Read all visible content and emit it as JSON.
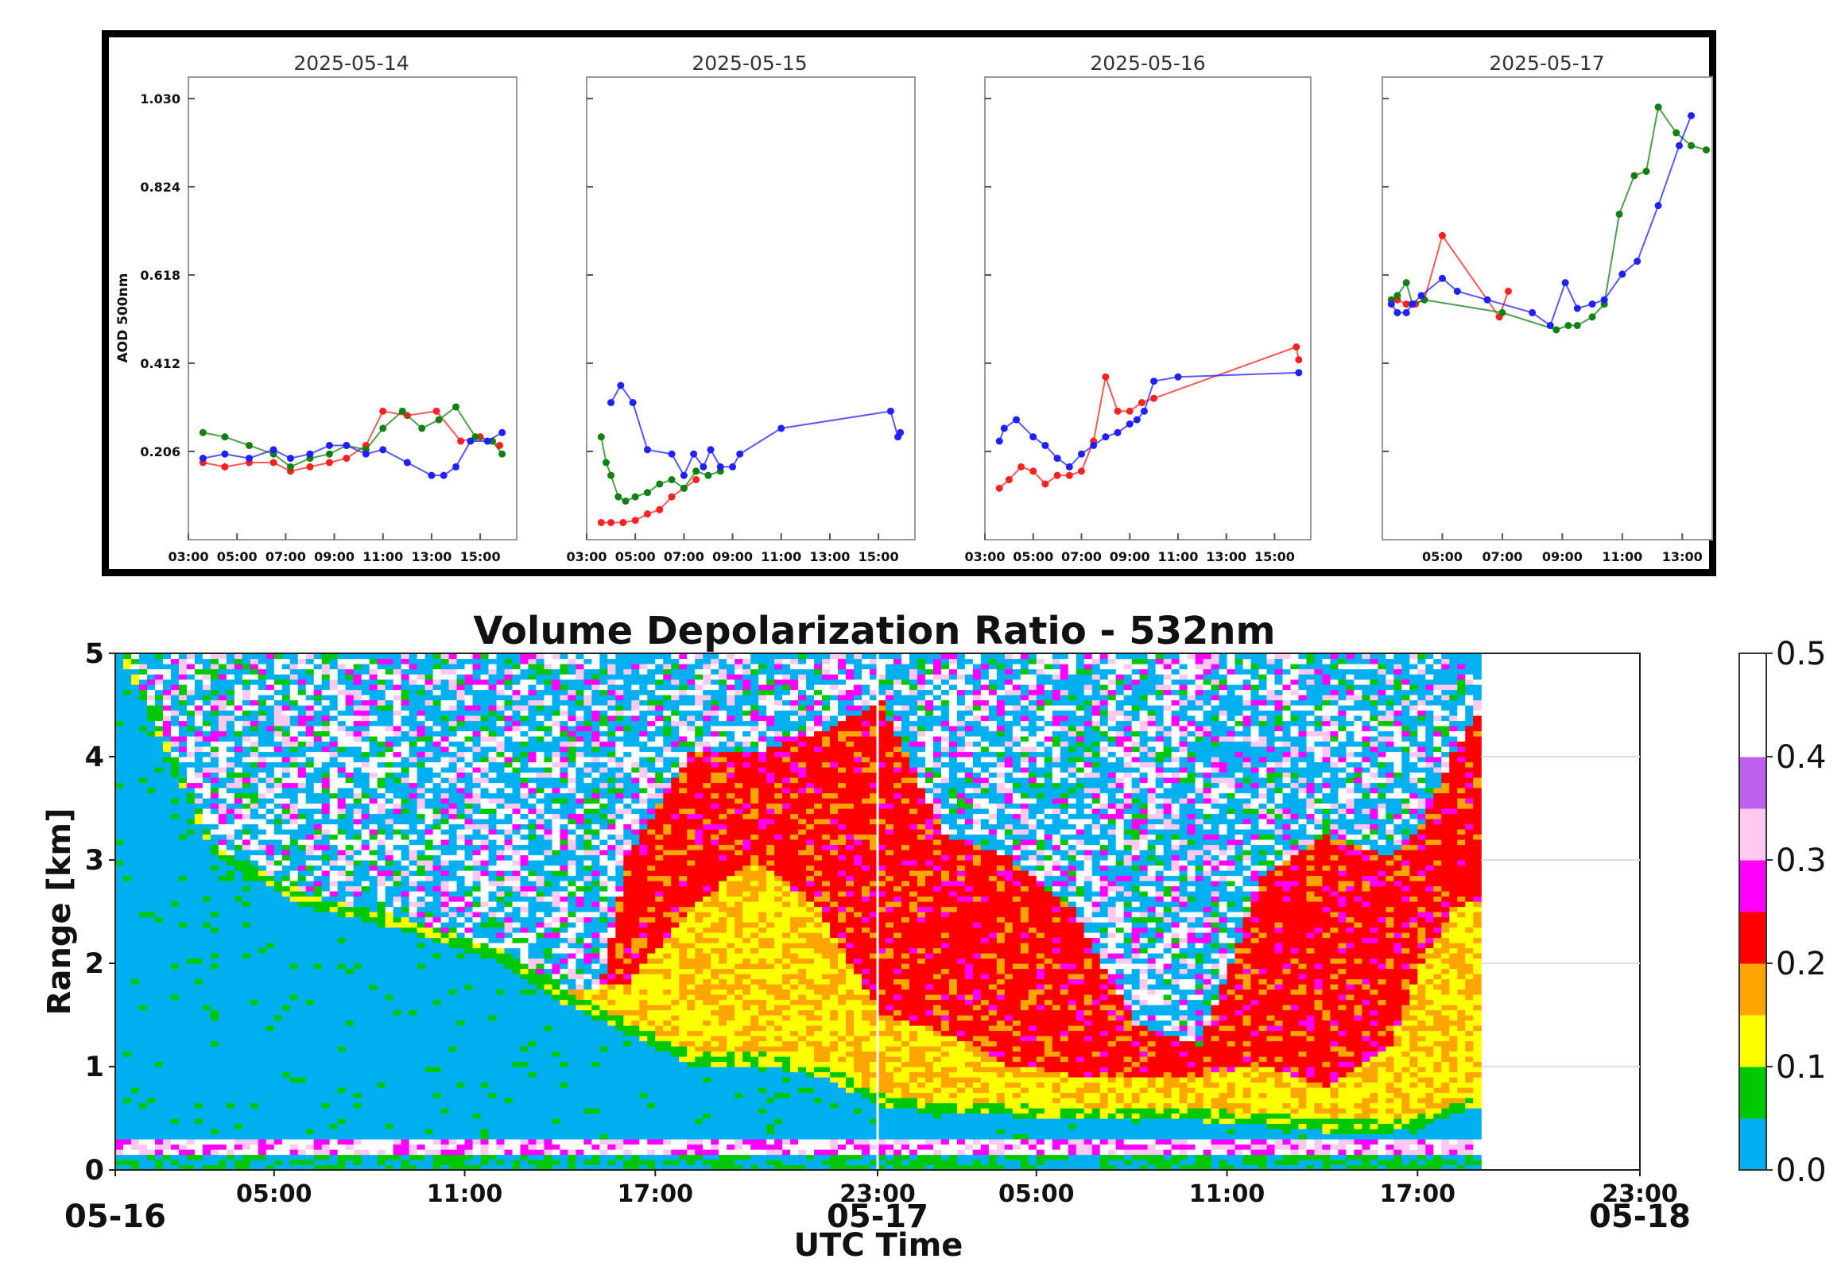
{
  "chart_data": [
    {
      "type": "line",
      "title": "2025-05-14",
      "ylabel": "AOD 500nm",
      "ylim": [
        0.0,
        1.08
      ],
      "xlim": [
        3.0,
        16.5
      ],
      "yticks": [
        "0.206",
        "0.412",
        "0.618",
        "0.824",
        "1.030"
      ],
      "xticks": [
        "03:00",
        "05:00",
        "07:00",
        "09:00",
        "11:00",
        "13:00",
        "15:00"
      ],
      "series": [
        {
          "name": "red",
          "color": "#ff2020",
          "x": [
            3.6,
            4.5,
            5.5,
            6.5,
            7.2,
            8.0,
            8.8,
            9.5,
            10.3,
            11.0,
            12.0,
            13.2,
            14.2,
            15.0,
            15.8
          ],
          "y": [
            0.18,
            0.17,
            0.18,
            0.18,
            0.16,
            0.17,
            0.18,
            0.19,
            0.22,
            0.3,
            0.29,
            0.3,
            0.23,
            0.24,
            0.22
          ]
        },
        {
          "name": "green",
          "color": "#108010",
          "x": [
            3.6,
            4.5,
            5.5,
            6.5,
            7.2,
            8.0,
            8.8,
            9.5,
            10.3,
            11.0,
            11.8,
            12.6,
            13.3,
            14.0,
            14.8,
            15.5,
            15.9
          ],
          "y": [
            0.25,
            0.24,
            0.22,
            0.2,
            0.17,
            0.19,
            0.2,
            0.22,
            0.21,
            0.26,
            0.3,
            0.26,
            0.28,
            0.31,
            0.24,
            0.23,
            0.2
          ]
        },
        {
          "name": "blue",
          "color": "#2020ff",
          "x": [
            3.6,
            4.5,
            5.5,
            6.5,
            7.2,
            8.0,
            8.8,
            9.5,
            10.3,
            11.0,
            12.0,
            13.0,
            13.5,
            14.0,
            14.6,
            15.3,
            15.9
          ],
          "y": [
            0.19,
            0.2,
            0.19,
            0.21,
            0.19,
            0.2,
            0.22,
            0.22,
            0.2,
            0.21,
            0.18,
            0.15,
            0.15,
            0.17,
            0.23,
            0.23,
            0.25
          ]
        }
      ]
    },
    {
      "type": "line",
      "title": "2025-05-15",
      "ylim": [
        0.0,
        1.08
      ],
      "xlim": [
        3.0,
        16.5
      ],
      "xticks": [
        "03:00",
        "05:00",
        "07:00",
        "09:00",
        "11:00",
        "13:00",
        "15:00"
      ],
      "series": [
        {
          "name": "red",
          "color": "#ff2020",
          "x": [
            3.6,
            4.0,
            4.5,
            5.0,
            5.5,
            6.0,
            6.5,
            7.0,
            7.5
          ],
          "y": [
            0.04,
            0.04,
            0.04,
            0.045,
            0.06,
            0.07,
            0.1,
            0.12,
            0.14
          ]
        },
        {
          "name": "green",
          "color": "#108010",
          "x": [
            3.6,
            3.8,
            4.0,
            4.3,
            4.6,
            5.0,
            5.5,
            6.0,
            6.5,
            7.0,
            7.5,
            8.0,
            8.5
          ],
          "y": [
            0.24,
            0.18,
            0.15,
            0.1,
            0.09,
            0.1,
            0.11,
            0.13,
            0.14,
            0.12,
            0.16,
            0.15,
            0.16
          ]
        },
        {
          "name": "blue",
          "color": "#2020ff",
          "x": [
            4.0,
            4.4,
            4.9,
            5.5,
            6.5,
            7.0,
            7.4,
            7.8,
            8.1,
            8.5,
            9.0,
            9.3,
            11.0,
            15.5,
            15.8,
            15.9
          ],
          "y": [
            0.32,
            0.36,
            0.32,
            0.21,
            0.2,
            0.15,
            0.2,
            0.17,
            0.21,
            0.17,
            0.17,
            0.2,
            0.26,
            0.3,
            0.24,
            0.25
          ]
        }
      ]
    },
    {
      "type": "line",
      "title": "2025-05-16",
      "ylim": [
        0.0,
        1.08
      ],
      "xlim": [
        3.0,
        16.5
      ],
      "xticks": [
        "03:00",
        "05:00",
        "07:00",
        "09:00",
        "11:00",
        "13:00",
        "15:00"
      ],
      "series": [
        {
          "name": "red",
          "color": "#ff2020",
          "x": [
            3.6,
            4.0,
            4.5,
            5.0,
            5.5,
            6.0,
            6.5,
            7.0,
            7.5,
            8.0,
            8.5,
            9.0,
            9.5,
            10.0,
            15.9,
            16.0
          ],
          "y": [
            0.12,
            0.14,
            0.17,
            0.16,
            0.13,
            0.15,
            0.15,
            0.16,
            0.23,
            0.38,
            0.3,
            0.3,
            0.32,
            0.33,
            0.45,
            0.42
          ]
        },
        {
          "name": "blue",
          "color": "#2020ff",
          "x": [
            3.6,
            3.8,
            4.3,
            5.0,
            5.5,
            6.0,
            6.5,
            7.0,
            7.5,
            8.0,
            8.5,
            9.0,
            9.3,
            9.6,
            10.0,
            11.0,
            16.0
          ],
          "y": [
            0.23,
            0.26,
            0.28,
            0.24,
            0.22,
            0.19,
            0.17,
            0.2,
            0.22,
            0.24,
            0.25,
            0.27,
            0.28,
            0.3,
            0.37,
            0.38,
            0.39
          ]
        }
      ]
    },
    {
      "type": "line",
      "title": "2025-05-17",
      "ylim": [
        0.0,
        1.08
      ],
      "xlim": [
        3.0,
        14.0
      ],
      "xticks": [
        "05:00",
        "07:00",
        "09:00",
        "11:00",
        "13:00"
      ],
      "series": [
        {
          "name": "red",
          "color": "#ff2020",
          "x": [
            3.3,
            3.5,
            3.8,
            4.1,
            4.4,
            5.0,
            6.9,
            7.2
          ],
          "y": [
            0.56,
            0.56,
            0.55,
            0.55,
            0.56,
            0.71,
            0.52,
            0.58
          ]
        },
        {
          "name": "green",
          "color": "#108010",
          "x": [
            3.3,
            3.5,
            3.8,
            4.0,
            4.4,
            7.0,
            8.8,
            9.2,
            9.5,
            10.0,
            10.4,
            10.9,
            11.4,
            11.8,
            12.2,
            12.8,
            13.3,
            13.8
          ],
          "y": [
            0.56,
            0.57,
            0.6,
            0.55,
            0.56,
            0.53,
            0.49,
            0.5,
            0.5,
            0.52,
            0.55,
            0.76,
            0.85,
            0.86,
            1.01,
            0.95,
            0.92,
            0.91
          ]
        },
        {
          "name": "blue",
          "color": "#2020ff",
          "x": [
            3.3,
            3.5,
            3.8,
            4.0,
            4.3,
            5.0,
            5.5,
            6.5,
            8.0,
            8.6,
            9.1,
            9.5,
            10.0,
            10.4,
            11.0,
            11.5,
            12.2,
            12.9,
            13.3
          ],
          "y": [
            0.55,
            0.53,
            0.53,
            0.55,
            0.57,
            0.61,
            0.58,
            0.56,
            0.53,
            0.5,
            0.6,
            0.54,
            0.55,
            0.56,
            0.62,
            0.65,
            0.78,
            0.92,
            0.99
          ]
        }
      ]
    },
    {
      "type": "heatmap",
      "title": "Volume Depolarization Ratio - 532nm",
      "xlabel": "UTC Time",
      "ylabel": "Range [km]",
      "xlim": [
        0,
        48
      ],
      "ylim": [
        0,
        5
      ],
      "xticks": [
        {
          "h": 0,
          "label": "",
          "date": "05-16"
        },
        {
          "h": 5,
          "label": "05:00",
          "date": ""
        },
        {
          "h": 11,
          "label": "11:00",
          "date": ""
        },
        {
          "h": 17,
          "label": "17:00",
          "date": ""
        },
        {
          "h": 24,
          "label": "23:00",
          "date": "05-17"
        },
        {
          "h": 29,
          "label": "05:00",
          "date": ""
        },
        {
          "h": 35,
          "label": "11:00",
          "date": ""
        },
        {
          "h": 41,
          "label": "17:00",
          "date": ""
        },
        {
          "h": 48,
          "label": "23:00",
          "date": "05-18"
        }
      ],
      "yticks": [
        "0",
        "1",
        "2",
        "3",
        "4",
        "5"
      ],
      "data_end_hour": 43,
      "colorbar": {
        "ticks": [
          "0.0",
          "0.1",
          "0.1",
          "0.2",
          "0.2",
          "0.3",
          "0.3",
          "0.4",
          "0.4",
          "0.5"
        ],
        "bins": [
          "#00b0f0",
          "#00c800",
          "#ffff00",
          "#ffa500",
          "#ff0000",
          "#ff00ff",
          "#ffc8f0",
          "#c060f0",
          "#ffffff",
          "#ffffff"
        ]
      },
      "profile": {
        "hours": [
          0,
          3,
          6,
          9,
          12,
          14,
          16,
          18,
          20,
          22,
          24,
          26,
          28,
          30,
          32,
          34,
          36,
          38,
          40,
          41,
          42,
          43
        ],
        "blue_top": [
          5.0,
          3.0,
          2.5,
          2.3,
          2.0,
          1.6,
          1.3,
          1.0,
          1.0,
          0.9,
          0.6,
          0.5,
          0.5,
          0.45,
          0.45,
          0.45,
          0.4,
          0.35,
          0.35,
          0.4,
          0.5,
          0.6
        ],
        "yellow_top": [
          0,
          0,
          0,
          0,
          2.0,
          1.7,
          1.8,
          2.5,
          3.0,
          2.5,
          1.5,
          1.3,
          1.0,
          0.9,
          0.9,
          0.9,
          1.0,
          0.8,
          1.2,
          2.0,
          2.5,
          2.6
        ],
        "red_top": [
          0,
          0,
          0,
          0,
          0,
          0,
          3.0,
          4.0,
          4.0,
          4.2,
          4.5,
          3.2,
          3.0,
          2.5,
          1.4,
          1.2,
          2.8,
          3.2,
          3.0,
          3.3,
          4.0,
          4.5
        ]
      }
    }
  ]
}
